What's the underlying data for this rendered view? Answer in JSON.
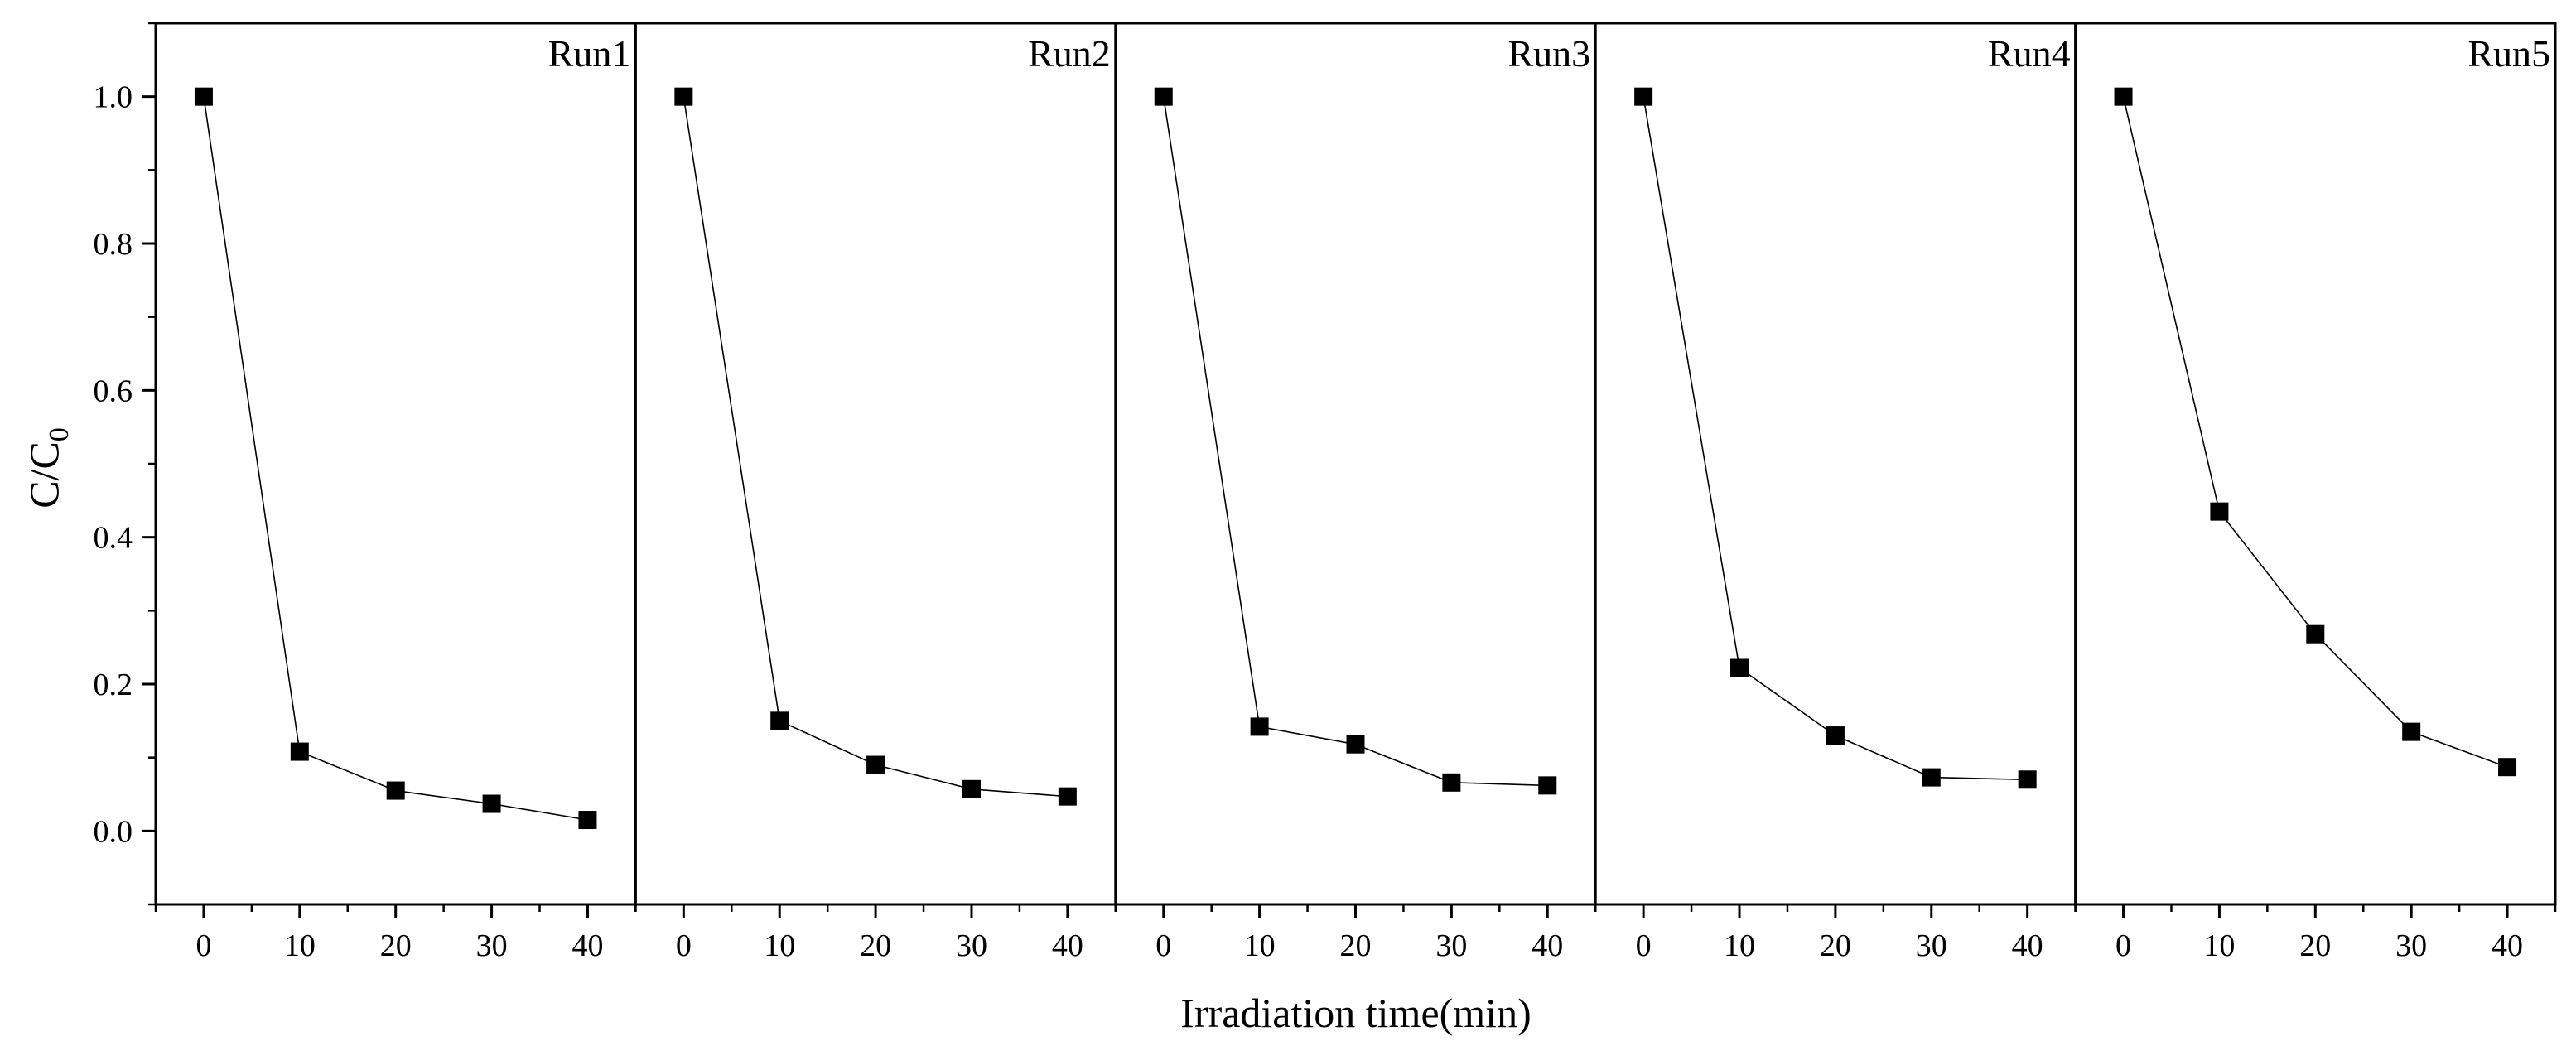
{
  "chart_data": {
    "type": "line",
    "layout": "five side-by-side panels sharing one y-axis",
    "xlabel": "Irradiation time(min)",
    "ylabel": "C/C",
    "ylabel_subscript": "0",
    "xlim": [
      -5,
      45
    ],
    "ylim": [
      -0.1,
      1.1
    ],
    "x_ticks": [
      "0",
      "10",
      "20",
      "30",
      "40"
    ],
    "y_ticks": [
      "0.0",
      "0.2",
      "0.4",
      "0.6",
      "0.8",
      "1.0"
    ],
    "x": [
      0,
      10,
      20,
      30,
      40
    ],
    "series": [
      {
        "name": "Run1",
        "values": [
          1.0,
          0.108,
          0.055,
          0.037,
          0.015
        ]
      },
      {
        "name": "Run2",
        "values": [
          1.0,
          0.15,
          0.09,
          0.057,
          0.047
        ]
      },
      {
        "name": "Run3",
        "values": [
          1.0,
          0.142,
          0.118,
          0.066,
          0.062
        ]
      },
      {
        "name": "Run4",
        "values": [
          1.0,
          0.222,
          0.13,
          0.073,
          0.07
        ]
      },
      {
        "name": "Run5",
        "values": [
          1.0,
          0.435,
          0.268,
          0.135,
          0.087
        ]
      }
    ],
    "marker": "square",
    "colors": {
      "marker": "#000000",
      "line": "#000000",
      "frame": "#000000"
    }
  }
}
